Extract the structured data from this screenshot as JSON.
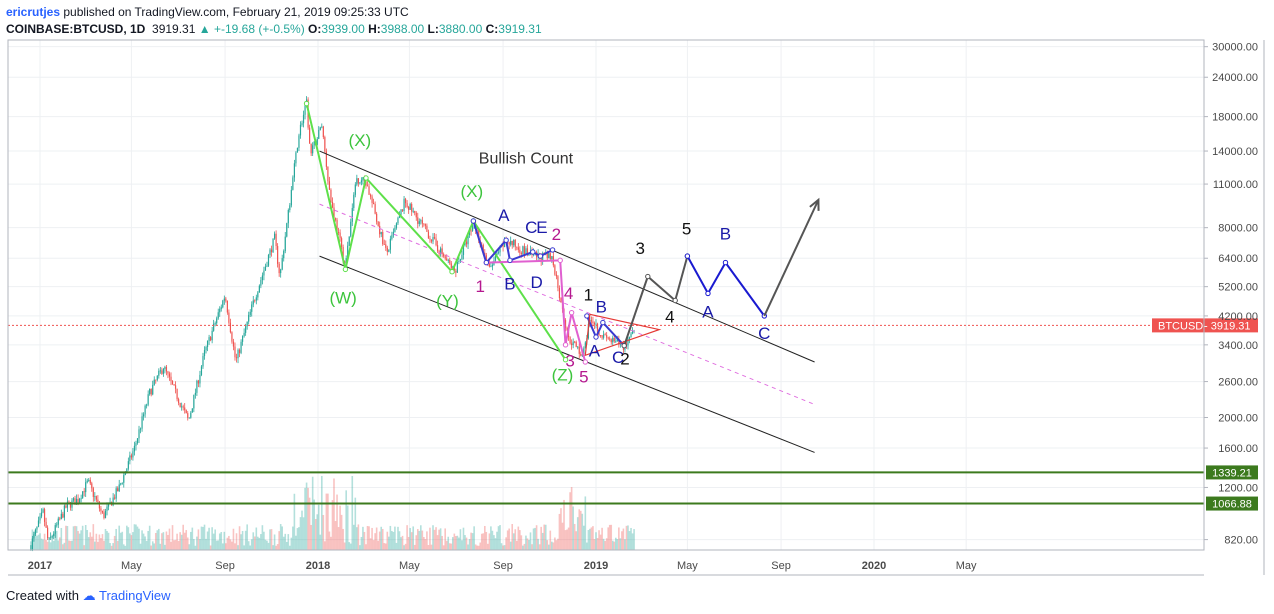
{
  "header": {
    "user": "ericrutjes",
    "published_text": "published on TradingView.com, February 21, 2019 09:25:33 UTC",
    "symbol": "COINBASE:BTCUSD, 1D",
    "last": "3919.31",
    "change": "+-19.68 (+-0.5%)",
    "open_label": "O:",
    "open": "3939.00",
    "high_label": "H:",
    "high": "3988.00",
    "low_label": "L:",
    "low": "3880.00",
    "close_label": "C:",
    "close": "3919.31"
  },
  "footer": {
    "created_with": "Created with",
    "brand": "TradingView"
  },
  "colors": {
    "up": "#26a69a",
    "down": "#ef5350",
    "green_line": "#3c7a1e",
    "price_tag": "#ef5350",
    "wave_green": "#5ee04a",
    "wave_blue": "#1a1aa8",
    "wave_magenta": "#b5188f",
    "projection": "#555555"
  },
  "chart_data": {
    "type": "candlestick",
    "title": "Bullish Count",
    "symbol": "BTCUSD",
    "y_scale": "log",
    "ylim": [
      760,
      31500
    ],
    "y_ticks": [
      "30000.00",
      "24000.00",
      "18000.00",
      "14000.00",
      "11000.00",
      "8000.00",
      "6400.00",
      "5200.00",
      "4200.00",
      "3400.00",
      "2600.00",
      "2000.00",
      "1600.00",
      "1200.00",
      "820.00"
    ],
    "x_ticks": [
      {
        "label": "2017",
        "date": "2017-01-01"
      },
      {
        "label": "May",
        "date": "2017-05-01"
      },
      {
        "label": "Sep",
        "date": "2017-09-01"
      },
      {
        "label": "2018",
        "date": "2018-01-01"
      },
      {
        "label": "May",
        "date": "2018-05-01"
      },
      {
        "label": "Sep",
        "date": "2018-09-01"
      },
      {
        "label": "2019",
        "date": "2019-01-01"
      },
      {
        "label": "May",
        "date": "2019-05-01"
      },
      {
        "label": "Sep",
        "date": "2019-09-01"
      },
      {
        "label": "2020",
        "date": "2020-01-01"
      },
      {
        "label": "May",
        "date": "2020-05-01"
      }
    ],
    "price_path": [
      [
        "2016-12-20",
        790
      ],
      [
        "2017-01-05",
        1000
      ],
      [
        "2017-01-12",
        800
      ],
      [
        "2017-02-05",
        1050
      ],
      [
        "2017-02-20",
        1100
      ],
      [
        "2017-03-05",
        1250
      ],
      [
        "2017-03-25",
        970
      ],
      [
        "2017-04-15",
        1200
      ],
      [
        "2017-05-05",
        1600
      ],
      [
        "2017-05-25",
        2400
      ],
      [
        "2017-06-12",
        2900
      ],
      [
        "2017-07-15",
        1950
      ],
      [
        "2017-08-05",
        3200
      ],
      [
        "2017-09-01",
        4900
      ],
      [
        "2017-09-15",
        3000
      ],
      [
        "2017-10-10",
        4800
      ],
      [
        "2017-11-05",
        7400
      ],
      [
        "2017-11-12",
        5600
      ],
      [
        "2017-12-07",
        16000
      ],
      [
        "2017-12-17",
        19800
      ],
      [
        "2017-12-22",
        13500
      ],
      [
        "2018-01-06",
        17000
      ],
      [
        "2018-01-17",
        10000
      ],
      [
        "2018-02-06",
        6000
      ],
      [
        "2018-02-20",
        11500
      ],
      [
        "2018-03-05",
        11200
      ],
      [
        "2018-04-01",
        6600
      ],
      [
        "2018-04-25",
        9700
      ],
      [
        "2018-05-20",
        8000
      ],
      [
        "2018-06-29",
        5800
      ],
      [
        "2018-07-25",
        8300
      ],
      [
        "2018-08-14",
        5900
      ],
      [
        "2018-09-05",
        7300
      ],
      [
        "2018-10-10",
        6500
      ],
      [
        "2018-11-05",
        6400
      ],
      [
        "2018-11-25",
        3600
      ],
      [
        "2018-12-15",
        3150
      ],
      [
        "2018-12-25",
        4200
      ],
      [
        "2019-01-10",
        3600
      ],
      [
        "2019-02-07",
        3350
      ],
      [
        "2019-02-21",
        3919
      ]
    ],
    "horizontal_lines": [
      {
        "price": 1339.21,
        "label": "1339.21"
      },
      {
        "price": 1066.88,
        "label": "1066.88"
      }
    ],
    "current_price": {
      "price": 3919.31,
      "label": "3919.31",
      "symbol": "BTCUSD"
    },
    "channel": {
      "upper": [
        [
          "2018-01-03",
          14000
        ],
        [
          "2019-10-15",
          3000
        ]
      ],
      "lower": [
        [
          "2018-01-03",
          6500
        ],
        [
          "2019-10-15",
          1550
        ]
      ],
      "mid": [
        [
          "2018-01-03",
          9500
        ],
        [
          "2019-10-15",
          2200
        ]
      ]
    },
    "green_wave": [
      [
        "2017-12-17",
        19800
      ],
      [
        "2018-02-06",
        5900
      ],
      [
        "2018-03-05",
        11500
      ],
      [
        "2018-06-26",
        5800
      ],
      [
        "2018-07-24",
        8400
      ],
      [
        "2018-11-22",
        3050
      ]
    ],
    "magenta_wave": [
      [
        "2018-08-10",
        6200
      ],
      [
        "2018-11-15",
        6300
      ],
      [
        "2018-11-22",
        3400
      ],
      [
        "2018-11-30",
        4300
      ],
      [
        "2018-12-18",
        3000
      ]
    ],
    "blue_abcde": [
      [
        "2018-07-24",
        8400
      ],
      [
        "2018-08-10",
        6200
      ],
      [
        "2018-09-05",
        7300
      ],
      [
        "2018-09-10",
        6300
      ],
      [
        "2018-10-10",
        6700
      ],
      [
        "2018-10-20",
        6500
      ],
      [
        "2018-11-05",
        6800
      ]
    ],
    "blue_abc_small": [
      [
        "2018-12-20",
        4200
      ],
      [
        "2019-01-01",
        3600
      ],
      [
        "2019-01-10",
        4000
      ],
      [
        "2019-02-07",
        3380
      ]
    ],
    "triangle": [
      [
        "2018-12-24",
        4250
      ],
      [
        "2019-03-25",
        3800
      ],
      [
        "2018-12-18",
        3150
      ]
    ],
    "projection_black": [
      [
        "2019-02-07",
        3380
      ],
      [
        "2019-03-10",
        5600
      ],
      [
        "2019-04-15",
        4700
      ],
      [
        "2019-05-01",
        6500
      ]
    ],
    "projection_blue": [
      [
        "2019-05-01",
        6500
      ],
      [
        "2019-05-28",
        4950
      ],
      [
        "2019-06-20",
        6200
      ],
      [
        "2019-08-10",
        4200
      ]
    ],
    "projection_arrow": [
      [
        "2019-08-10",
        4200
      ],
      [
        "2019-10-20",
        9800
      ]
    ],
    "annotations": [
      {
        "text": "Bullish Count",
        "date": "2018-10-01",
        "price": 12800,
        "color": "#333333"
      },
      {
        "text": "(X)",
        "date": "2018-02-25",
        "price": 14500,
        "color": "#3cc43c"
      },
      {
        "text": "(W)",
        "date": "2018-02-03",
        "price": 4600,
        "color": "#3cc43c"
      },
      {
        "text": "(X)",
        "date": "2018-07-22",
        "price": 10000,
        "color": "#3cc43c"
      },
      {
        "text": "(Y)",
        "date": "2018-06-20",
        "price": 4500,
        "color": "#3cc43c"
      },
      {
        "text": "(Z)",
        "date": "2018-11-18",
        "price": 2620,
        "color": "#3cc43c"
      },
      {
        "text": "A",
        "date": "2018-09-02",
        "price": 8400,
        "color": "#1a1aa8"
      },
      {
        "text": "B",
        "date": "2018-09-10",
        "price": 5100,
        "color": "#1a1aa8"
      },
      {
        "text": "C",
        "date": "2018-10-08",
        "price": 7700,
        "color": "#1a1aa8"
      },
      {
        "text": "E",
        "date": "2018-10-22",
        "price": 7700,
        "color": "#1a1aa8"
      },
      {
        "text": "D",
        "date": "2018-10-15",
        "price": 5150,
        "color": "#1a1aa8"
      },
      {
        "text": "1",
        "date": "2018-08-02",
        "price": 5000,
        "color": "#b5188f"
      },
      {
        "text": "2",
        "date": "2018-11-10",
        "price": 7300,
        "color": "#b5188f"
      },
      {
        "text": "4",
        "date": "2018-11-26",
        "price": 4750,
        "color": "#b5188f"
      },
      {
        "text": "3",
        "date": "2018-11-28",
        "price": 2900,
        "color": "#b5188f"
      },
      {
        "text": "5",
        "date": "2018-12-16",
        "price": 2580,
        "color": "#b5188f"
      },
      {
        "text": "1",
        "date": "2018-12-22",
        "price": 4700,
        "color": "#111111"
      },
      {
        "text": "B",
        "date": "2019-01-08",
        "price": 4300,
        "color": "#1a1aa8"
      },
      {
        "text": "A",
        "date": "2018-12-30",
        "price": 3120,
        "color": "#1a1aa8"
      },
      {
        "text": "C",
        "date": "2019-01-30",
        "price": 2980,
        "color": "#1a1aa8"
      },
      {
        "text": "2",
        "date": "2019-02-08",
        "price": 2950,
        "color": "#111111"
      },
      {
        "text": "3",
        "date": "2019-02-28",
        "price": 6600,
        "color": "#111111"
      },
      {
        "text": "4",
        "date": "2019-04-08",
        "price": 4000,
        "color": "#111111"
      },
      {
        "text": "5",
        "date": "2019-04-30",
        "price": 7600,
        "color": "#111111"
      },
      {
        "text": "A",
        "date": "2019-05-28",
        "price": 4150,
        "color": "#1a1aa8"
      },
      {
        "text": "B",
        "date": "2019-06-20",
        "price": 7350,
        "color": "#1a1aa8"
      },
      {
        "text": "C",
        "date": "2019-08-10",
        "price": 3550,
        "color": "#1a1aa8"
      }
    ]
  }
}
